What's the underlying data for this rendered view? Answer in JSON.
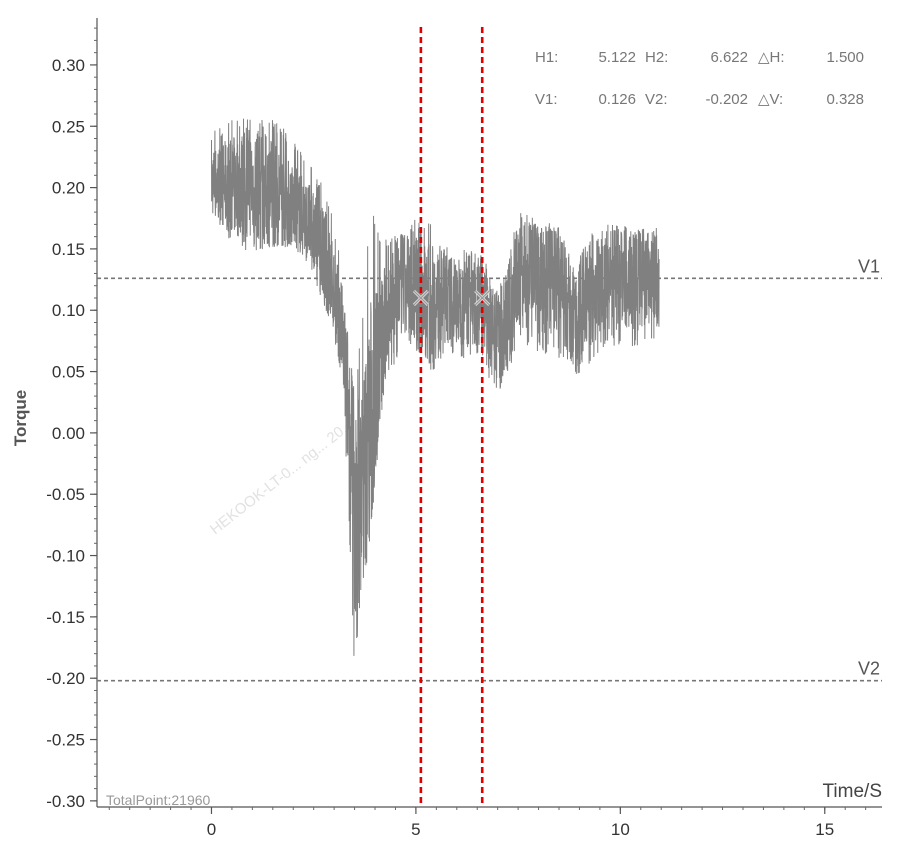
{
  "chart_data": {
    "type": "line",
    "title": "",
    "xlabel": "Time/S",
    "ylabel": "Torque",
    "xlim": [
      -2.8,
      16.4
    ],
    "ylim": [
      -0.305,
      0.335
    ],
    "x_ticks": [
      0,
      5,
      10,
      15
    ],
    "x_tick_labels": [
      "0",
      "5",
      "10",
      "15"
    ],
    "y_ticks": [
      0.3,
      0.25,
      0.2,
      0.15,
      0.1,
      0.05,
      0.0,
      -0.05,
      -0.1,
      -0.15,
      -0.2,
      -0.25,
      -0.3
    ],
    "y_tick_labels": [
      "0.30",
      "0.25",
      "0.20",
      "0.15",
      "0.10",
      "0.05",
      "0.00",
      "-0.05",
      "-0.10",
      "-0.15",
      "-0.20",
      "-0.25",
      "-0.30"
    ],
    "grid": false,
    "series_color": "#808080",
    "series": [
      {
        "x": [
          0.0,
          0.5,
          1.0,
          1.5,
          2.0,
          2.4,
          2.8,
          3.0,
          3.2,
          3.35,
          3.5,
          3.7,
          3.9,
          4.1,
          4.3,
          4.6,
          5.0,
          5.4,
          5.8,
          6.2,
          6.6,
          6.9,
          7.2,
          7.5,
          8.0,
          8.5,
          8.9,
          9.2,
          9.6,
          10.0,
          10.5,
          10.95
        ],
        "y_center": [
          0.205,
          0.2,
          0.205,
          0.195,
          0.185,
          0.17,
          0.14,
          0.115,
          0.08,
          0.02,
          -0.07,
          -0.04,
          0.01,
          0.06,
          0.095,
          0.12,
          0.115,
          0.105,
          0.11,
          0.105,
          0.11,
          0.075,
          0.09,
          0.13,
          0.125,
          0.125,
          0.085,
          0.11,
          0.125,
          0.125,
          0.125,
          0.125
        ],
        "y_high": [
          0.248,
          0.255,
          0.258,
          0.258,
          0.24,
          0.22,
          0.2,
          0.17,
          0.14,
          0.09,
          0.03,
          0.1,
          0.19,
          0.16,
          0.16,
          0.165,
          0.175,
          0.17,
          0.15,
          0.15,
          0.15,
          0.12,
          0.14,
          0.18,
          0.175,
          0.17,
          0.14,
          0.16,
          0.17,
          0.17,
          0.172,
          0.17
        ],
        "y_low": [
          0.18,
          0.155,
          0.145,
          0.15,
          0.155,
          0.14,
          0.1,
          0.08,
          0.04,
          -0.06,
          -0.2,
          -0.11,
          -0.06,
          0.0,
          0.05,
          0.06,
          0.065,
          0.05,
          0.065,
          0.06,
          0.065,
          0.03,
          0.04,
          0.075,
          0.065,
          0.06,
          0.045,
          0.055,
          0.07,
          0.07,
          0.065,
          0.075
        ]
      }
    ],
    "cursors": {
      "vertical": [
        {
          "value": 5.122,
          "color": "#e00000"
        },
        {
          "value": 6.622,
          "color": "#e00000"
        }
      ],
      "horizontal": [
        {
          "label": "V1",
          "value": 0.126,
          "color": "#777777"
        },
        {
          "label": "V2",
          "value": -0.202,
          "color": "#777777"
        }
      ],
      "markers": [
        {
          "x": 5.122,
          "y": 0.11
        },
        {
          "x": 6.622,
          "y": 0.11
        }
      ]
    },
    "readout": {
      "row1": [
        {
          "label": "H1:",
          "value": "5.122"
        },
        {
          "label": "H2:",
          "value": "6.622"
        },
        {
          "label": "△H:",
          "value": "1.500"
        }
      ],
      "row2": [
        {
          "label": "V1:",
          "value": "0.126"
        },
        {
          "label": "V2:",
          "value": "-0.202"
        },
        {
          "label": "△V:",
          "value": "0.328"
        }
      ]
    },
    "footer": "TotalPoint:21960",
    "watermark": "HEKOOK-LT-0... ng... 20..."
  }
}
